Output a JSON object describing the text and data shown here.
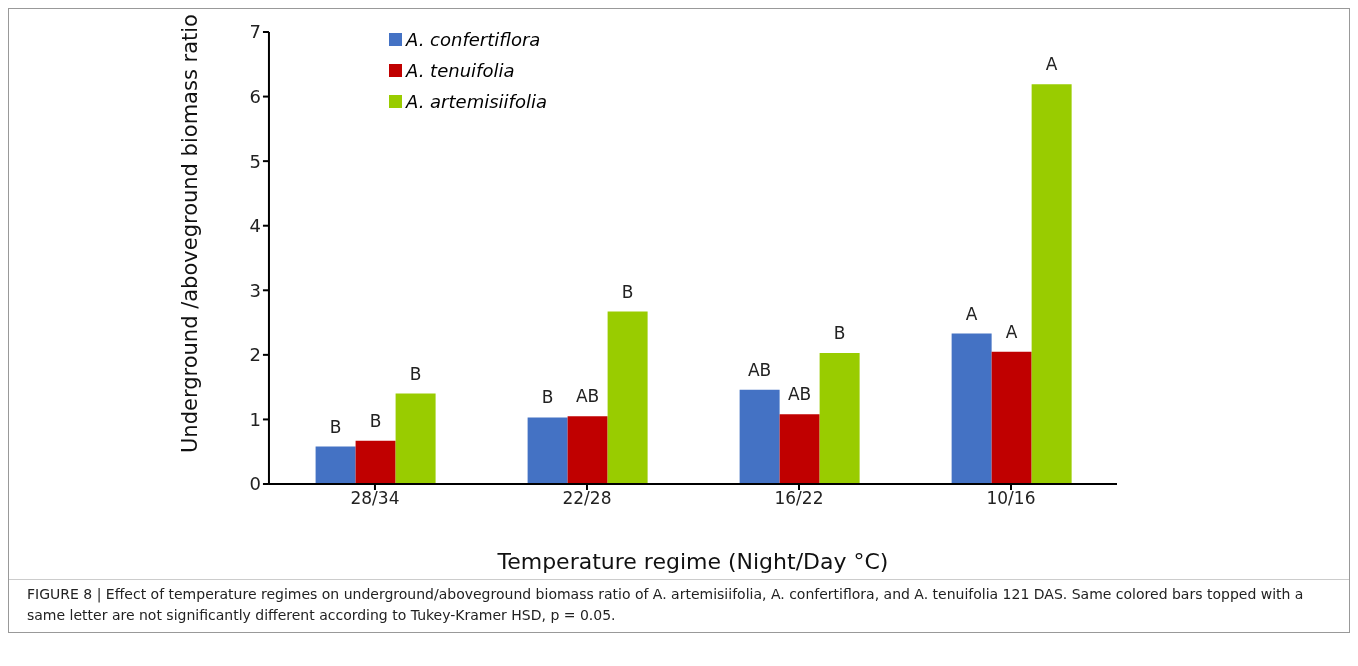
{
  "chart_data": {
    "type": "bar",
    "xlabel": "Temperature regime (Night/Day °C)",
    "ylabel": "Underground /aboveground biomass ratio",
    "categories": [
      "28/34",
      "22/28",
      "16/22",
      "10/16"
    ],
    "series": [
      {
        "name": "A. confertiflora",
        "color": "#4472c4",
        "values": [
          0.58,
          1.03,
          1.46,
          2.33
        ],
        "value_labels": [
          "B",
          "B",
          "AB",
          "A"
        ]
      },
      {
        "name": "A. tenuifolia",
        "color": "#c00000",
        "values": [
          0.67,
          1.05,
          1.08,
          2.05
        ],
        "value_labels": [
          "B",
          "AB",
          "AB",
          "A"
        ]
      },
      {
        "name": "A. artemisiifolia",
        "color": "#99cc00",
        "values": [
          1.4,
          2.67,
          2.03,
          6.19
        ],
        "value_labels": [
          "B",
          "B",
          "B",
          "A"
        ]
      }
    ],
    "ylim": [
      0,
      7
    ],
    "yticks": [
      0,
      1,
      2,
      3,
      4,
      5,
      6,
      7
    ],
    "grid": false,
    "legend": "top left",
    "annotations": [
      "FIGURE 8 | Effect of temperature regimes on underground/aboveground biomass ratio of A. artemisiifolia, A. confertiflora, and A. tenuifolia 121 DAS. Same colored bars topped with a same letter are not significantly different according to Tukey-Kramer HSD, p = 0.05."
    ]
  }
}
